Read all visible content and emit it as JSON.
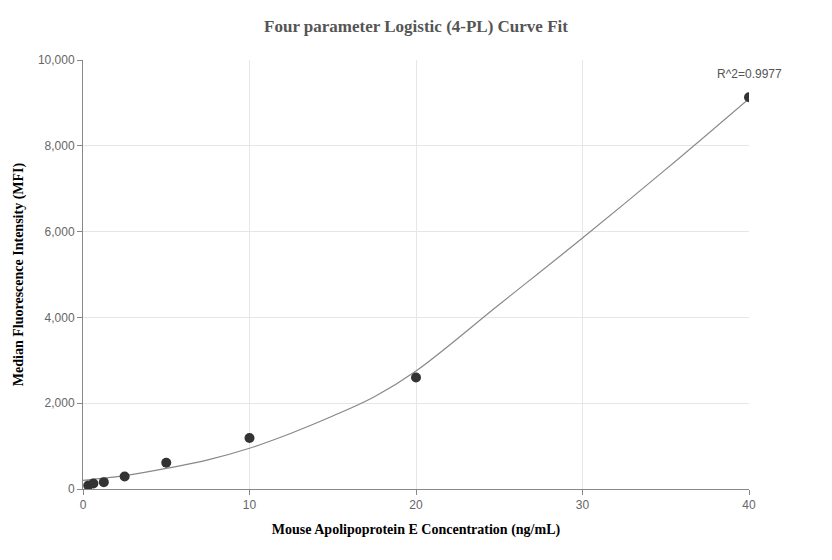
{
  "chart_data": {
    "type": "scatter",
    "title": "Four parameter Logistic (4-PL) Curve Fit",
    "x_label": "Mouse Apolipoprotein E Concentration (ng/mL)",
    "y_label": "Median Fluorescence Intensity (MFI)",
    "series": [
      {
        "type": "scatter",
        "marker": "circle",
        "color": "#333333",
        "x": [
          0.3125,
          0.625,
          1.25,
          2.5,
          5,
          10,
          20,
          40
        ],
        "values": [
          80,
          130,
          160,
          290,
          610,
          1190,
          2600,
          9130
        ]
      },
      {
        "type": "line",
        "line_style": "solid",
        "color": "#888888",
        "x": [
          0,
          1,
          2.5,
          5,
          7.5,
          10,
          12.5,
          15,
          17.5,
          20,
          25,
          30,
          35,
          40
        ],
        "values": [
          200,
          240,
          310,
          480,
          680,
          950,
          1300,
          1700,
          2150,
          2750,
          4300,
          5850,
          7450,
          9100
        ]
      }
    ],
    "annotations": [
      {
        "text": "R^2=0.9977",
        "x": 40,
        "y": 9130
      }
    ],
    "xlim": [
      0,
      40
    ],
    "xticks": [
      0,
      10,
      20,
      30,
      40
    ],
    "ylim": [
      0,
      10000
    ],
    "yticks": [
      0,
      {
        "value": 2000,
        "label": "2,000"
      },
      {
        "value": 4000,
        "label": "4,000"
      },
      {
        "value": 6000,
        "label": "6,000"
      },
      {
        "value": 8000,
        "label": "8,000"
      },
      {
        "value": 10000,
        "label": "10,000"
      }
    ],
    "grid": true
  }
}
